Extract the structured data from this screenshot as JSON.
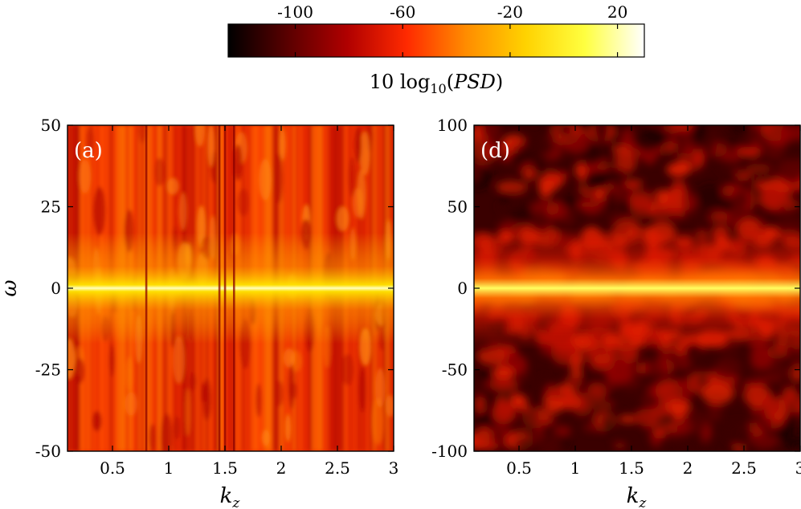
{
  "chart_data": {
    "type": "heatmap",
    "colorbar": {
      "label": "10 log10(PSD)",
      "label_parts": {
        "prefix": "10 log",
        "subscript": "10",
        "open": "(",
        "quantity": "PSD",
        "close": ")"
      },
      "range": [
        -125,
        30
      ],
      "ticks": [
        -100,
        -60,
        -20,
        20
      ],
      "tick_labels": [
        "-100",
        "-60",
        "-20",
        "20"
      ],
      "colormap": "hot",
      "colors": [
        "#000000",
        "#5a0000",
        "#b00000",
        "#ff2a00",
        "#ff8c00",
        "#ffd200",
        "#ffff40",
        "#ffffff"
      ]
    },
    "panels": [
      {
        "tag": "(a)",
        "xlabel": "k",
        "xlabel_sub": "z",
        "ylabel": "ω",
        "xlim": [
          0.1,
          3.0
        ],
        "ylim": [
          -50,
          50
        ],
        "xticks": [
          0.5,
          1,
          1.5,
          2,
          2.5,
          3
        ],
        "xtick_labels": [
          "0.5",
          "1",
          "1.5",
          "2",
          "2.5",
          "3"
        ],
        "yticks": [
          50,
          25,
          0,
          -25,
          -50
        ],
        "ytick_labels": [
          "50",
          "25",
          "0",
          "-25",
          "-50"
        ],
        "description_values": {
          "peak_at_omega": 0,
          "peak_level": 15,
          "background_level": -45,
          "dark_kz_lines": [
            0.8,
            1.45,
            1.5,
            1.58
          ]
        }
      },
      {
        "tag": "(d)",
        "xlabel": "k",
        "xlabel_sub": "z",
        "ylabel": "",
        "xlim": [
          0.1,
          3.0
        ],
        "ylim": [
          -100,
          100
        ],
        "xticks": [
          0.5,
          1,
          1.5,
          2,
          2.5,
          3
        ],
        "xtick_labels": [
          "0.5",
          "1",
          "1.5",
          "2",
          "2.5",
          "3"
        ],
        "yticks": [
          100,
          50,
          0,
          -50,
          -100
        ],
        "ytick_labels": [
          "100",
          "50",
          "0",
          "-50",
          "-100"
        ],
        "description_values": {
          "peak_at_omega": 0,
          "peak_level": 5,
          "background_level": -85
        }
      }
    ]
  }
}
